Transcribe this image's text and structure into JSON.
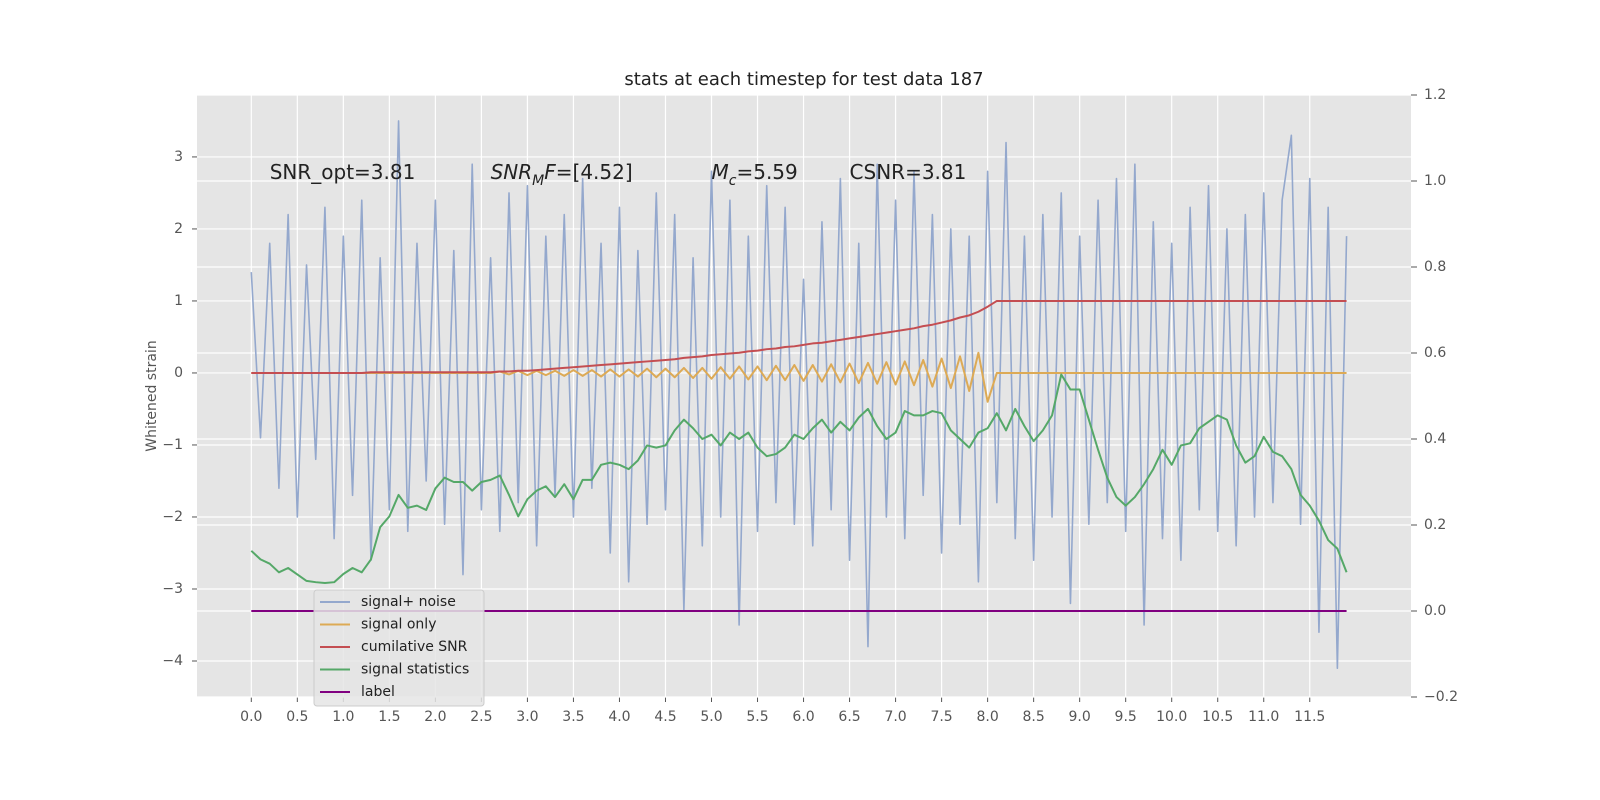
{
  "chart_data": {
    "type": "line",
    "title": "stats at each timestep for test data 187",
    "ylabel": "Whitened strain",
    "annotations": [
      [
        "SNR_opt=3.81"
      ],
      [
        "SNR",
        "M",
        "F",
        "=[4.52]"
      ],
      [
        "M",
        "c",
        "=5.59"
      ],
      [
        "CSNR=3.81"
      ]
    ],
    "x": [
      0,
      0.1,
      0.2,
      0.3,
      0.4,
      0.5,
      0.6,
      0.7,
      0.8,
      0.9,
      1,
      1.1,
      1.2,
      1.3,
      1.4,
      1.5,
      1.6,
      1.7,
      1.8,
      1.9,
      2,
      2.1,
      2.2,
      2.3,
      2.4,
      2.5,
      2.6,
      2.7,
      2.8,
      2.9,
      3,
      3.1,
      3.2,
      3.3,
      3.4,
      3.5,
      3.6,
      3.7,
      3.8,
      3.9,
      4,
      4.1,
      4.2,
      4.3,
      4.4,
      4.5,
      4.6,
      4.7,
      4.8,
      4.9,
      5,
      5.1,
      5.2,
      5.3,
      5.4,
      5.5,
      5.6,
      5.7,
      5.8,
      5.9,
      6,
      6.1,
      6.2,
      6.3,
      6.4,
      6.5,
      6.6,
      6.7,
      6.8,
      6.9,
      7,
      7.1,
      7.2,
      7.3,
      7.4,
      7.5,
      7.6,
      7.7,
      7.8,
      7.9,
      8,
      8.1,
      8.2,
      8.3,
      8.4,
      8.5,
      8.6,
      8.7,
      8.8,
      8.9,
      9,
      9.1,
      9.2,
      9.3,
      9.4,
      9.5,
      9.6,
      9.7,
      9.8,
      9.9,
      10,
      10.1,
      10.2,
      10.3,
      10.4,
      10.5,
      10.6,
      10.7,
      10.8,
      10.9,
      11,
      11.1,
      11.2,
      11.3,
      11.4,
      11.5,
      11.6,
      11.7,
      11.8,
      11.9
    ],
    "series": [
      {
        "name": "signal+ noise",
        "color": "#94a8cd",
        "values": [
          1.4,
          -0.9,
          1.8,
          -1.6,
          2.2,
          -2.0,
          1.5,
          -1.2,
          2.3,
          -2.3,
          1.9,
          -1.7,
          2.4,
          -2.6,
          1.6,
          -1.9,
          3.5,
          -2.2,
          1.8,
          -1.5,
          2.4,
          -2.1,
          1.7,
          -2.8,
          2.9,
          -1.9,
          1.6,
          -2.2,
          2.5,
          -1.8,
          2.6,
          -2.4,
          1.9,
          -1.7,
          2.2,
          -2.0,
          2.7,
          -1.6,
          1.8,
          -2.5,
          2.3,
          -2.9,
          1.7,
          -2.1,
          2.5,
          -1.9,
          2.2,
          -3.3,
          1.6,
          -2.4,
          2.8,
          -2.0,
          2.4,
          -3.5,
          1.9,
          -2.2,
          2.6,
          -1.8,
          2.3,
          -2.1,
          1.3,
          -2.4,
          2.1,
          -1.9,
          2.7,
          -2.6,
          1.8,
          -3.8,
          2.9,
          -2.0,
          2.4,
          -2.3,
          2.8,
          -1.7,
          2.2,
          -2.5,
          2.0,
          -2.1,
          1.9,
          -2.9,
          2.8,
          -1.8,
          3.2,
          -2.3,
          1.9,
          -2.6,
          2.2,
          -2.0,
          2.5,
          -3.2,
          1.9,
          -2.1,
          2.4,
          -1.8,
          2.7,
          -2.2,
          2.9,
          -3.5,
          2.1,
          -2.3,
          1.8,
          -2.6,
          2.3,
          -1.9,
          2.6,
          -2.2,
          2.0,
          -2.4,
          2.2,
          -2.0,
          2.5,
          -1.8,
          2.4,
          3.3,
          -2.1,
          2.7,
          -3.6,
          2.3,
          -4.1,
          1.9
        ]
      },
      {
        "name": "signal only",
        "color": "#ddaa55",
        "values": [
          0,
          0,
          0,
          0,
          0,
          0,
          0,
          0,
          0,
          0,
          0,
          0,
          0,
          0,
          0,
          0,
          0,
          0,
          0,
          0,
          0,
          0,
          0,
          0,
          0,
          0,
          0,
          0.02,
          -0.02,
          0.03,
          -0.03,
          0.03,
          -0.03,
          0.03,
          -0.04,
          0.04,
          -0.04,
          0.04,
          -0.05,
          0.05,
          -0.05,
          0.05,
          -0.05,
          0.06,
          -0.06,
          0.06,
          -0.06,
          0.07,
          -0.07,
          0.07,
          -0.08,
          0.08,
          -0.08,
          0.09,
          -0.09,
          0.09,
          -0.1,
          0.1,
          -0.1,
          0.11,
          -0.11,
          0.11,
          -0.12,
          0.12,
          -0.13,
          0.13,
          -0.14,
          0.14,
          -0.15,
          0.15,
          -0.16,
          0.16,
          -0.17,
          0.18,
          -0.19,
          0.2,
          -0.21,
          0.23,
          -0.25,
          0.28,
          -0.4,
          0,
          0,
          0,
          0,
          0,
          0,
          0,
          0,
          0,
          0,
          0,
          0,
          0,
          0,
          0,
          0,
          0,
          0,
          0,
          0,
          0,
          0,
          0,
          0,
          0,
          0,
          0,
          0,
          0,
          0,
          0,
          0,
          0,
          0,
          0,
          0,
          0,
          0,
          0
        ]
      },
      {
        "name": "cumilative SNR",
        "color": "#c44e52",
        "values": [
          0,
          0,
          0,
          0,
          0,
          0,
          0,
          0,
          0,
          0,
          0,
          0,
          0,
          0.01,
          0.01,
          0.01,
          0.01,
          0.01,
          0.01,
          0.01,
          0.01,
          0.01,
          0.01,
          0.01,
          0.01,
          0.01,
          0.01,
          0.02,
          0.02,
          0.03,
          0.03,
          0.04,
          0.05,
          0.06,
          0.07,
          0.08,
          0.09,
          0.1,
          0.11,
          0.12,
          0.13,
          0.14,
          0.15,
          0.16,
          0.17,
          0.18,
          0.19,
          0.21,
          0.22,
          0.23,
          0.25,
          0.26,
          0.27,
          0.28,
          0.3,
          0.31,
          0.33,
          0.34,
          0.36,
          0.37,
          0.39,
          0.41,
          0.42,
          0.44,
          0.46,
          0.48,
          0.5,
          0.52,
          0.54,
          0.56,
          0.58,
          0.6,
          0.62,
          0.65,
          0.67,
          0.7,
          0.73,
          0.77,
          0.8,
          0.85,
          0.92,
          1,
          1,
          1,
          1,
          1,
          1,
          1,
          1,
          1,
          1,
          1,
          1,
          1,
          1,
          1,
          1,
          1,
          1,
          1,
          1,
          1,
          1,
          1,
          1,
          1,
          1,
          1,
          1,
          1,
          1,
          1,
          1,
          1,
          1,
          1,
          1,
          1,
          1,
          1
        ]
      },
      {
        "name": "signal statistics",
        "color": "#55a868",
        "axis": "y2",
        "values": [
          0.14,
          0.12,
          0.11,
          0.09,
          0.1,
          0.085,
          0.07,
          0.067,
          0.065,
          0.067,
          0.086,
          0.1,
          0.09,
          0.12,
          0.195,
          0.22,
          0.27,
          0.24,
          0.245,
          0.235,
          0.285,
          0.31,
          0.3,
          0.3,
          0.28,
          0.3,
          0.305,
          0.315,
          0.27,
          0.22,
          0.26,
          0.28,
          0.29,
          0.265,
          0.295,
          0.26,
          0.305,
          0.305,
          0.34,
          0.345,
          0.34,
          0.33,
          0.35,
          0.385,
          0.38,
          0.385,
          0.42,
          0.445,
          0.425,
          0.4,
          0.41,
          0.385,
          0.415,
          0.4,
          0.415,
          0.38,
          0.36,
          0.365,
          0.38,
          0.41,
          0.4,
          0.425,
          0.445,
          0.415,
          0.44,
          0.42,
          0.45,
          0.47,
          0.43,
          0.4,
          0.415,
          0.465,
          0.455,
          0.455,
          0.465,
          0.46,
          0.42,
          0.4,
          0.38,
          0.415,
          0.425,
          0.46,
          0.42,
          0.47,
          0.43,
          0.395,
          0.42,
          0.455,
          0.55,
          0.515,
          0.515,
          0.445,
          0.375,
          0.31,
          0.265,
          0.245,
          0.265,
          0.295,
          0.33,
          0.375,
          0.34,
          0.385,
          0.39,
          0.425,
          0.44,
          0.455,
          0.445,
          0.385,
          0.345,
          0.36,
          0.405,
          0.37,
          0.36,
          0.33,
          0.27,
          0.245,
          0.21,
          0.165,
          0.145,
          0.09
        ]
      },
      {
        "name": "label",
        "color": "#800080",
        "axis": "y2",
        "values": [
          0,
          0,
          0,
          0,
          0,
          0,
          0,
          0,
          0,
          0,
          0,
          0,
          0,
          0,
          0,
          0,
          0,
          0,
          0,
          0,
          0,
          0,
          0,
          0,
          0,
          0,
          0,
          0,
          0,
          0,
          0,
          0,
          0,
          0,
          0,
          0,
          0,
          0,
          0,
          0,
          0,
          0,
          0,
          0,
          0,
          0,
          0,
          0,
          0,
          0,
          0,
          0,
          0,
          0,
          0,
          0,
          0,
          0,
          0,
          0,
          0,
          0,
          0,
          0,
          0,
          0,
          0,
          0,
          0,
          0,
          0,
          0,
          0,
          0,
          0,
          0,
          0,
          0,
          0,
          0,
          0,
          0,
          0,
          0,
          0,
          0,
          0,
          0,
          0,
          0,
          0,
          0,
          0,
          0,
          0,
          0,
          0,
          0,
          0,
          0,
          0,
          0,
          0,
          0,
          0,
          0,
          0,
          0,
          0,
          0,
          0,
          0,
          0,
          0,
          0,
          0,
          0,
          0,
          0,
          0
        ]
      }
    ],
    "xlim": [
      -0.59,
      12.6
    ],
    "xticks": [
      {
        "value": 0,
        "label": "0.0"
      },
      0.5,
      {
        "value": 1,
        "label": "1.0"
      },
      1.5,
      {
        "value": 2,
        "label": "2.0"
      },
      2.5,
      {
        "value": 3,
        "label": "3.0"
      },
      3.5,
      {
        "value": 4,
        "label": "4.0"
      },
      4.5,
      {
        "value": 5,
        "label": "5.0"
      },
      5.5,
      {
        "value": 6,
        "label": "6.0"
      },
      6.5,
      {
        "value": 7,
        "label": "7.0"
      },
      7.5,
      {
        "value": 8,
        "label": "8.0"
      },
      8.5,
      {
        "value": 9,
        "label": "9.0"
      },
      9.5,
      {
        "value": 10,
        "label": "10.0"
      },
      10.5,
      {
        "value": 11,
        "label": "11.0"
      },
      11.5
    ],
    "ylim": [
      -4.5,
      3.86
    ],
    "yticks": [
      {
        "value": -4,
        "label": "−4"
      },
      {
        "value": -3,
        "label": "−3"
      },
      {
        "value": -2,
        "label": "−2"
      },
      {
        "value": -1,
        "label": "−1"
      },
      0,
      1,
      2,
      3
    ],
    "y2lim": [
      -0.2,
      1.2
    ],
    "y2ticks": [
      {
        "value": -0.2,
        "label": "−0.2"
      },
      {
        "value": 0,
        "label": "0.0"
      },
      0.2,
      0.4,
      0.6,
      0.8,
      {
        "value": 1,
        "label": "1.0"
      },
      1.2
    ],
    "grid": true,
    "legend": "lower left"
  }
}
